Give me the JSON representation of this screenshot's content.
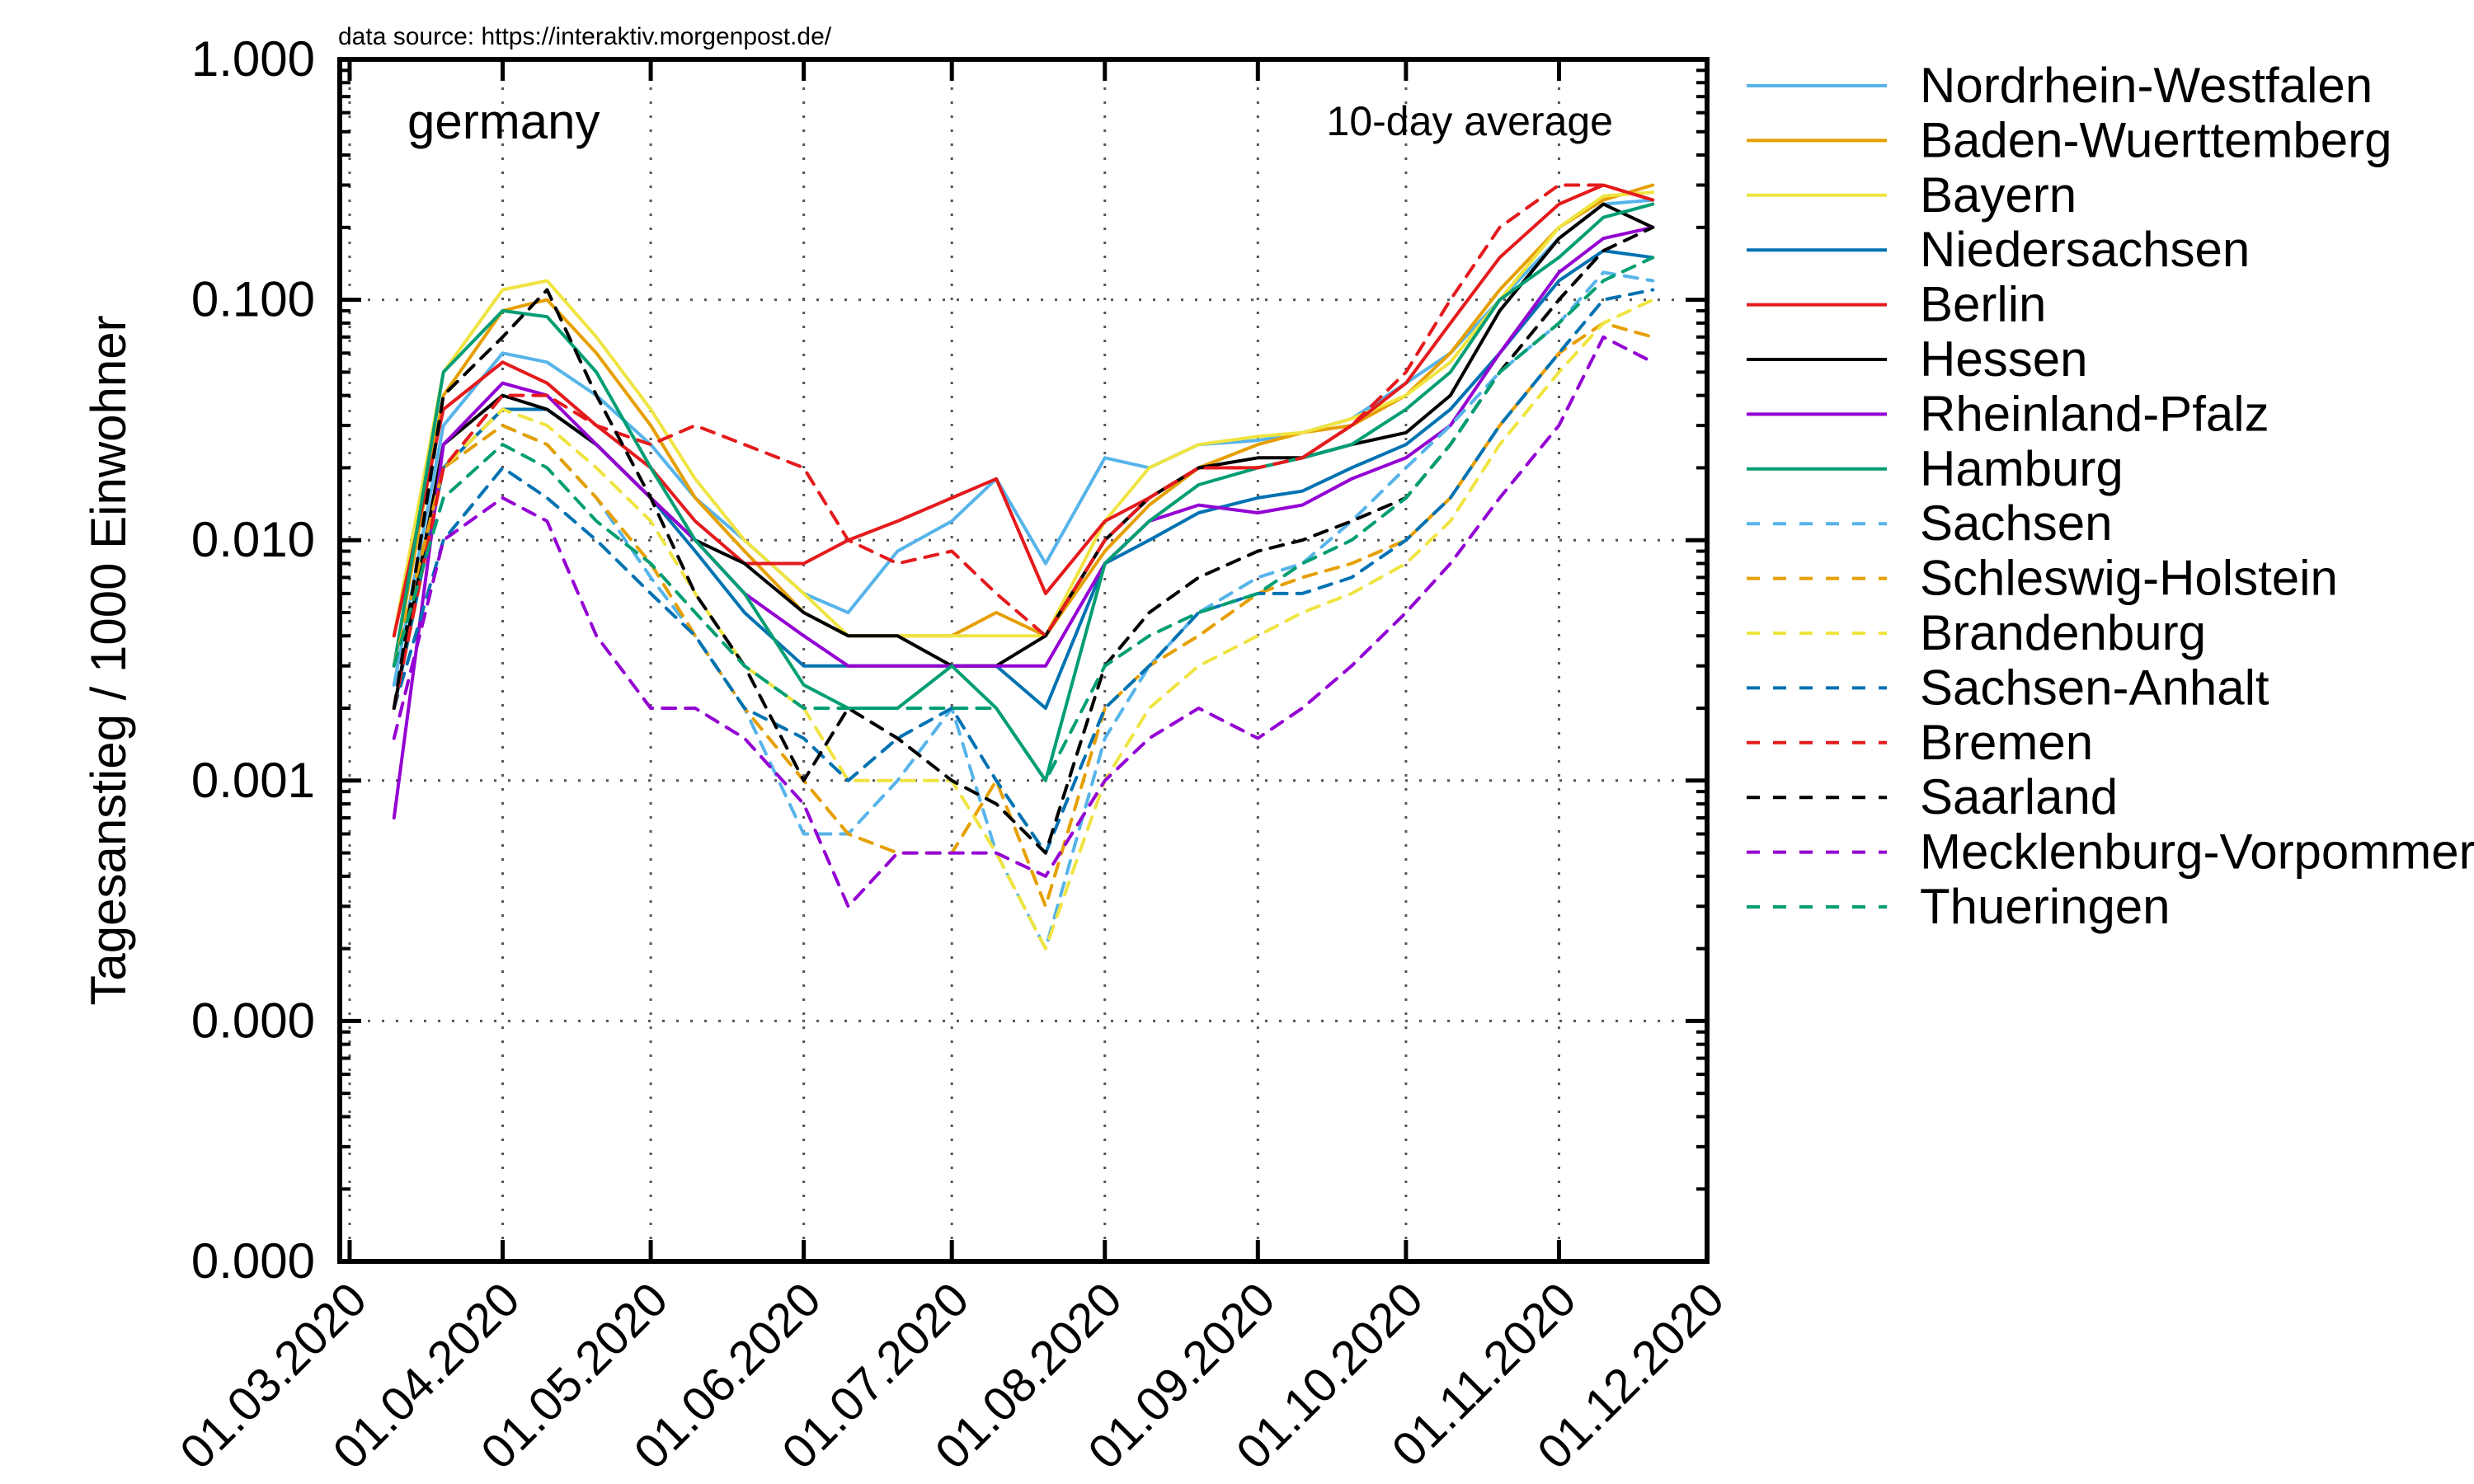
{
  "chart_data": {
    "type": "line",
    "source_note": "data source: https://interaktiv.morgenpost.de/",
    "title": "germany",
    "subtitle": "10-day average",
    "xlabel": "",
    "ylabel": "Tagesanstieg / 1000 Einwohner",
    "yscale": "log",
    "ylim": [
      1e-05,
      1.0
    ],
    "y_ticks": [
      {
        "value": 1.0,
        "label": "1.000"
      },
      {
        "value": 0.1,
        "label": "0.100"
      },
      {
        "value": 0.01,
        "label": "0.010"
      },
      {
        "value": 0.001,
        "label": "0.001"
      },
      {
        "value": 0.0001,
        "label": "0.000"
      },
      {
        "value": 1e-05,
        "label": "0.000"
      }
    ],
    "xlim": [
      "2020-02-28",
      "2020-12-01"
    ],
    "x_ticks": [
      {
        "value": "2020-03-01",
        "label": "01.03.2020"
      },
      {
        "value": "2020-04-01",
        "label": "01.04.2020"
      },
      {
        "value": "2020-05-01",
        "label": "01.05.2020"
      },
      {
        "value": "2020-06-01",
        "label": "01.06.2020"
      },
      {
        "value": "2020-07-01",
        "label": "01.07.2020"
      },
      {
        "value": "2020-08-01",
        "label": "01.08.2020"
      },
      {
        "value": "2020-09-01",
        "label": "01.09.2020"
      },
      {
        "value": "2020-10-01",
        "label": "01.10.2020"
      },
      {
        "value": "2020-11-01",
        "label": "01.11.2020"
      },
      {
        "value": "2020-12-01",
        "label": "01.12.2020"
      }
    ],
    "grid": true,
    "legend_position": "outside-right",
    "x_dates": [
      "2020-03-10",
      "2020-03-20",
      "2020-04-01",
      "2020-04-10",
      "2020-04-20",
      "2020-05-01",
      "2020-05-10",
      "2020-05-20",
      "2020-06-01",
      "2020-06-10",
      "2020-06-20",
      "2020-07-01",
      "2020-07-10",
      "2020-07-20",
      "2020-08-01",
      "2020-08-10",
      "2020-08-20",
      "2020-09-01",
      "2020-09-10",
      "2020-09-20",
      "2020-10-01",
      "2020-10-10",
      "2020-10-20",
      "2020-11-01",
      "2020-11-10",
      "2020-11-20"
    ],
    "series": [
      {
        "name": "Nordrhein-Westfalen",
        "color": "#56b4e9",
        "dash": "solid",
        "values": [
          0.0025,
          0.03,
          0.06,
          0.055,
          0.04,
          0.025,
          0.015,
          0.01,
          0.006,
          0.005,
          0.009,
          0.012,
          0.018,
          0.008,
          0.022,
          0.02,
          0.025,
          0.026,
          0.028,
          0.032,
          0.045,
          0.06,
          0.1,
          0.18,
          0.25,
          0.26
        ]
      },
      {
        "name": "Baden-Wuerttemberg",
        "color": "#e69f00",
        "dash": "solid",
        "values": [
          0.003,
          0.04,
          0.09,
          0.1,
          0.06,
          0.03,
          0.015,
          0.009,
          0.005,
          0.004,
          0.004,
          0.004,
          0.005,
          0.004,
          0.009,
          0.014,
          0.02,
          0.025,
          0.028,
          0.03,
          0.04,
          0.06,
          0.11,
          0.2,
          0.26,
          0.3
        ]
      },
      {
        "name": "Bayern",
        "color": "#f0e442",
        "dash": "solid",
        "values": [
          0.004,
          0.05,
          0.11,
          0.12,
          0.07,
          0.035,
          0.018,
          0.01,
          0.006,
          0.004,
          0.004,
          0.004,
          0.004,
          0.004,
          0.012,
          0.02,
          0.025,
          0.027,
          0.028,
          0.032,
          0.04,
          0.055,
          0.1,
          0.2,
          0.27,
          0.28
        ]
      },
      {
        "name": "Niedersachsen",
        "color": "#0072b2",
        "dash": "solid",
        "values": [
          0.002,
          0.02,
          0.035,
          0.035,
          0.025,
          0.015,
          0.009,
          0.005,
          0.003,
          0.003,
          0.003,
          0.003,
          0.003,
          0.002,
          0.008,
          0.01,
          0.013,
          0.015,
          0.016,
          0.02,
          0.025,
          0.035,
          0.06,
          0.12,
          0.16,
          0.15
        ]
      },
      {
        "name": "Berlin",
        "color": "#e41a1c",
        "dash": "solid",
        "values": [
          0.004,
          0.035,
          0.055,
          0.045,
          0.03,
          0.02,
          0.012,
          0.008,
          0.008,
          0.01,
          0.012,
          0.015,
          0.018,
          0.006,
          0.012,
          0.015,
          0.02,
          0.02,
          0.022,
          0.03,
          0.045,
          0.08,
          0.15,
          0.25,
          0.3,
          0.26
        ]
      },
      {
        "name": "Hessen",
        "color": "#000000",
        "dash": "solid",
        "values": [
          0.002,
          0.025,
          0.04,
          0.035,
          0.025,
          0.015,
          0.01,
          0.008,
          0.005,
          0.004,
          0.004,
          0.003,
          0.003,
          0.004,
          0.01,
          0.015,
          0.02,
          0.022,
          0.022,
          0.025,
          0.028,
          0.04,
          0.09,
          0.18,
          0.25,
          0.2
        ]
      },
      {
        "name": "Rheinland-Pfalz",
        "color": "#9400d3",
        "dash": "solid",
        "values": [
          0.0007,
          0.025,
          0.045,
          0.04,
          0.025,
          0.015,
          0.01,
          0.006,
          0.004,
          0.003,
          0.003,
          0.003,
          0.003,
          0.003,
          0.008,
          0.012,
          0.014,
          0.013,
          0.014,
          0.018,
          0.022,
          0.03,
          0.06,
          0.13,
          0.18,
          0.2
        ]
      },
      {
        "name": "Hamburg",
        "color": "#009e73",
        "dash": "solid",
        "values": [
          0.003,
          0.05,
          0.09,
          0.085,
          0.05,
          0.02,
          0.01,
          0.006,
          0.0025,
          0.002,
          0.002,
          0.003,
          0.002,
          0.001,
          0.008,
          0.012,
          0.017,
          0.02,
          0.022,
          0.025,
          0.035,
          0.05,
          0.1,
          0.15,
          0.22,
          0.25
        ]
      },
      {
        "name": "Sachsen",
        "color": "#56b4e9",
        "dash": "dashed",
        "values": [
          0.003,
          0.02,
          0.03,
          0.025,
          0.015,
          0.007,
          0.004,
          0.002,
          0.0006,
          0.0006,
          0.001,
          0.002,
          0.0005,
          0.0002,
          0.0015,
          0.003,
          0.005,
          0.007,
          0.008,
          0.012,
          0.02,
          0.03,
          0.05,
          0.08,
          0.13,
          0.12
        ]
      },
      {
        "name": "Schleswig-Holstein",
        "color": "#e69f00",
        "dash": "dashed",
        "values": [
          0.003,
          0.02,
          0.03,
          0.025,
          0.015,
          0.008,
          0.004,
          0.002,
          0.001,
          0.0006,
          0.0005,
          0.0005,
          0.001,
          0.0003,
          0.002,
          0.003,
          0.004,
          0.006,
          0.007,
          0.008,
          0.01,
          0.015,
          0.03,
          0.06,
          0.08,
          0.07
        ]
      },
      {
        "name": "Brandenburg",
        "color": "#f0e442",
        "dash": "dashed",
        "values": [
          0.002,
          0.02,
          0.035,
          0.03,
          0.02,
          0.012,
          0.006,
          0.003,
          0.002,
          0.001,
          0.001,
          0.001,
          0.0005,
          0.0002,
          0.001,
          0.002,
          0.003,
          0.004,
          0.005,
          0.006,
          0.008,
          0.012,
          0.025,
          0.05,
          0.08,
          0.1
        ]
      },
      {
        "name": "Sachsen-Anhalt",
        "color": "#0072b2",
        "dash": "dashed",
        "values": [
          0.002,
          0.01,
          0.02,
          0.015,
          0.01,
          0.006,
          0.004,
          0.002,
          0.0015,
          0.001,
          0.0015,
          0.002,
          0.001,
          0.0005,
          0.002,
          0.003,
          0.005,
          0.006,
          0.006,
          0.007,
          0.01,
          0.015,
          0.03,
          0.06,
          0.1,
          0.11
        ]
      },
      {
        "name": "Bremen",
        "color": "#e41a1c",
        "dash": "dashed",
        "values": [
          0.002,
          0.02,
          0.04,
          0.04,
          0.03,
          0.025,
          0.03,
          0.025,
          0.02,
          0.01,
          0.008,
          0.009,
          0.006,
          0.004,
          0.01,
          0.015,
          0.02,
          0.02,
          0.022,
          0.03,
          0.05,
          0.1,
          0.2,
          0.3,
          0.3,
          0.26
        ]
      },
      {
        "name": "Saarland",
        "color": "#000000",
        "dash": "dashed",
        "values": [
          0.002,
          0.04,
          0.07,
          0.11,
          0.04,
          0.015,
          0.006,
          0.003,
          0.001,
          0.002,
          0.0015,
          0.001,
          0.0008,
          0.0005,
          0.003,
          0.005,
          0.007,
          0.009,
          0.01,
          0.012,
          0.015,
          0.025,
          0.05,
          0.1,
          0.16,
          0.2
        ]
      },
      {
        "name": "Mecklenburg-Vorpommern",
        "color": "#9400d3",
        "dash": "dashed",
        "values": [
          0.0015,
          0.01,
          0.015,
          0.012,
          0.004,
          0.002,
          0.002,
          0.0015,
          0.0008,
          0.0003,
          0.0005,
          0.0005,
          0.0005,
          0.0004,
          0.001,
          0.0015,
          0.002,
          0.0015,
          0.002,
          0.003,
          0.005,
          0.008,
          0.015,
          0.03,
          0.07,
          0.055
        ]
      },
      {
        "name": "Thueringen",
        "color": "#009e73",
        "dash": "dashed",
        "values": [
          0.003,
          0.015,
          0.025,
          0.02,
          0.012,
          0.008,
          0.005,
          0.003,
          0.002,
          0.002,
          0.002,
          0.002,
          0.002,
          0.001,
          0.003,
          0.004,
          0.005,
          0.006,
          0.008,
          0.01,
          0.015,
          0.025,
          0.05,
          0.08,
          0.12,
          0.15
        ]
      }
    ]
  }
}
